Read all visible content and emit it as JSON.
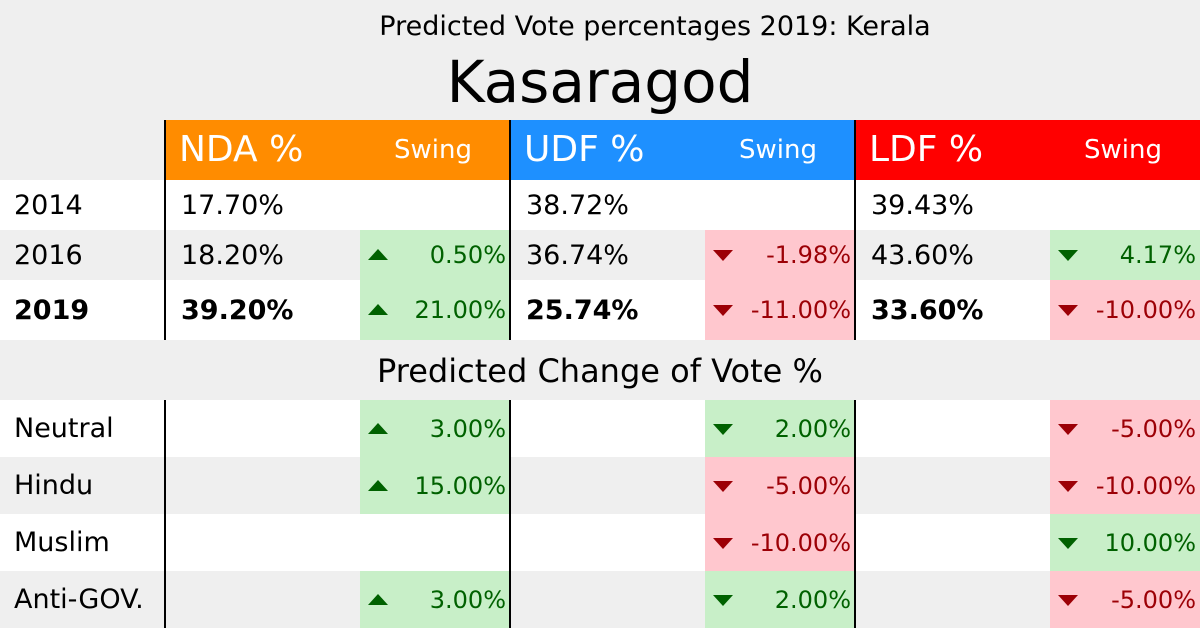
{
  "subtitle": "Predicted Vote percentages 2019: Kerala",
  "title": "Kasaragod",
  "section_title": "Predicted Change of Vote %",
  "colors": {
    "nda": "#ff8c00",
    "udf": "#1e90ff",
    "ldf": "#ff0000",
    "positive_bg": "#c8efc8",
    "negative_bg": "#ffc7ce"
  },
  "chart_data": {
    "type": "table",
    "title": "Kasaragod",
    "subtitle": "Predicted Vote percentages 2019: Kerala",
    "columns": [
      {
        "party": "NDA %",
        "swing": "Swing"
      },
      {
        "party": "UDF %",
        "swing": "Swing"
      },
      {
        "party": "LDF %",
        "swing": "Swing"
      }
    ],
    "years": [
      {
        "label": "2014",
        "bold": false,
        "nda": "17.70%",
        "nda_swing": "",
        "udf": "38.72%",
        "udf_swing": "",
        "ldf": "39.43%",
        "ldf_swing": ""
      },
      {
        "label": "2016",
        "bold": false,
        "nda": "18.20%",
        "nda_swing": "0.50%",
        "udf": "36.74%",
        "udf_swing": "-1.98%",
        "ldf": "43.60%",
        "ldf_swing": "4.17%"
      },
      {
        "label": "2019",
        "bold": true,
        "nda": "39.20%",
        "nda_swing": "21.00%",
        "udf": "25.74%",
        "udf_swing": "-11.00%",
        "ldf": "33.60%",
        "ldf_swing": "-10.00%"
      }
    ],
    "change_section": "Predicted Change of Vote %",
    "changes": [
      {
        "label": "Neutral",
        "nda": "3.00%",
        "udf": "2.00%",
        "ldf": "-5.00%"
      },
      {
        "label": "Hindu",
        "nda": "15.00%",
        "udf": "-5.00%",
        "ldf": "-10.00%"
      },
      {
        "label": "Muslim",
        "nda": "",
        "udf": "-10.00%",
        "ldf": "10.00%"
      },
      {
        "label": "Anti-GOV.",
        "nda": "3.00%",
        "udf": "2.00%",
        "ldf": "-5.00%"
      }
    ]
  }
}
